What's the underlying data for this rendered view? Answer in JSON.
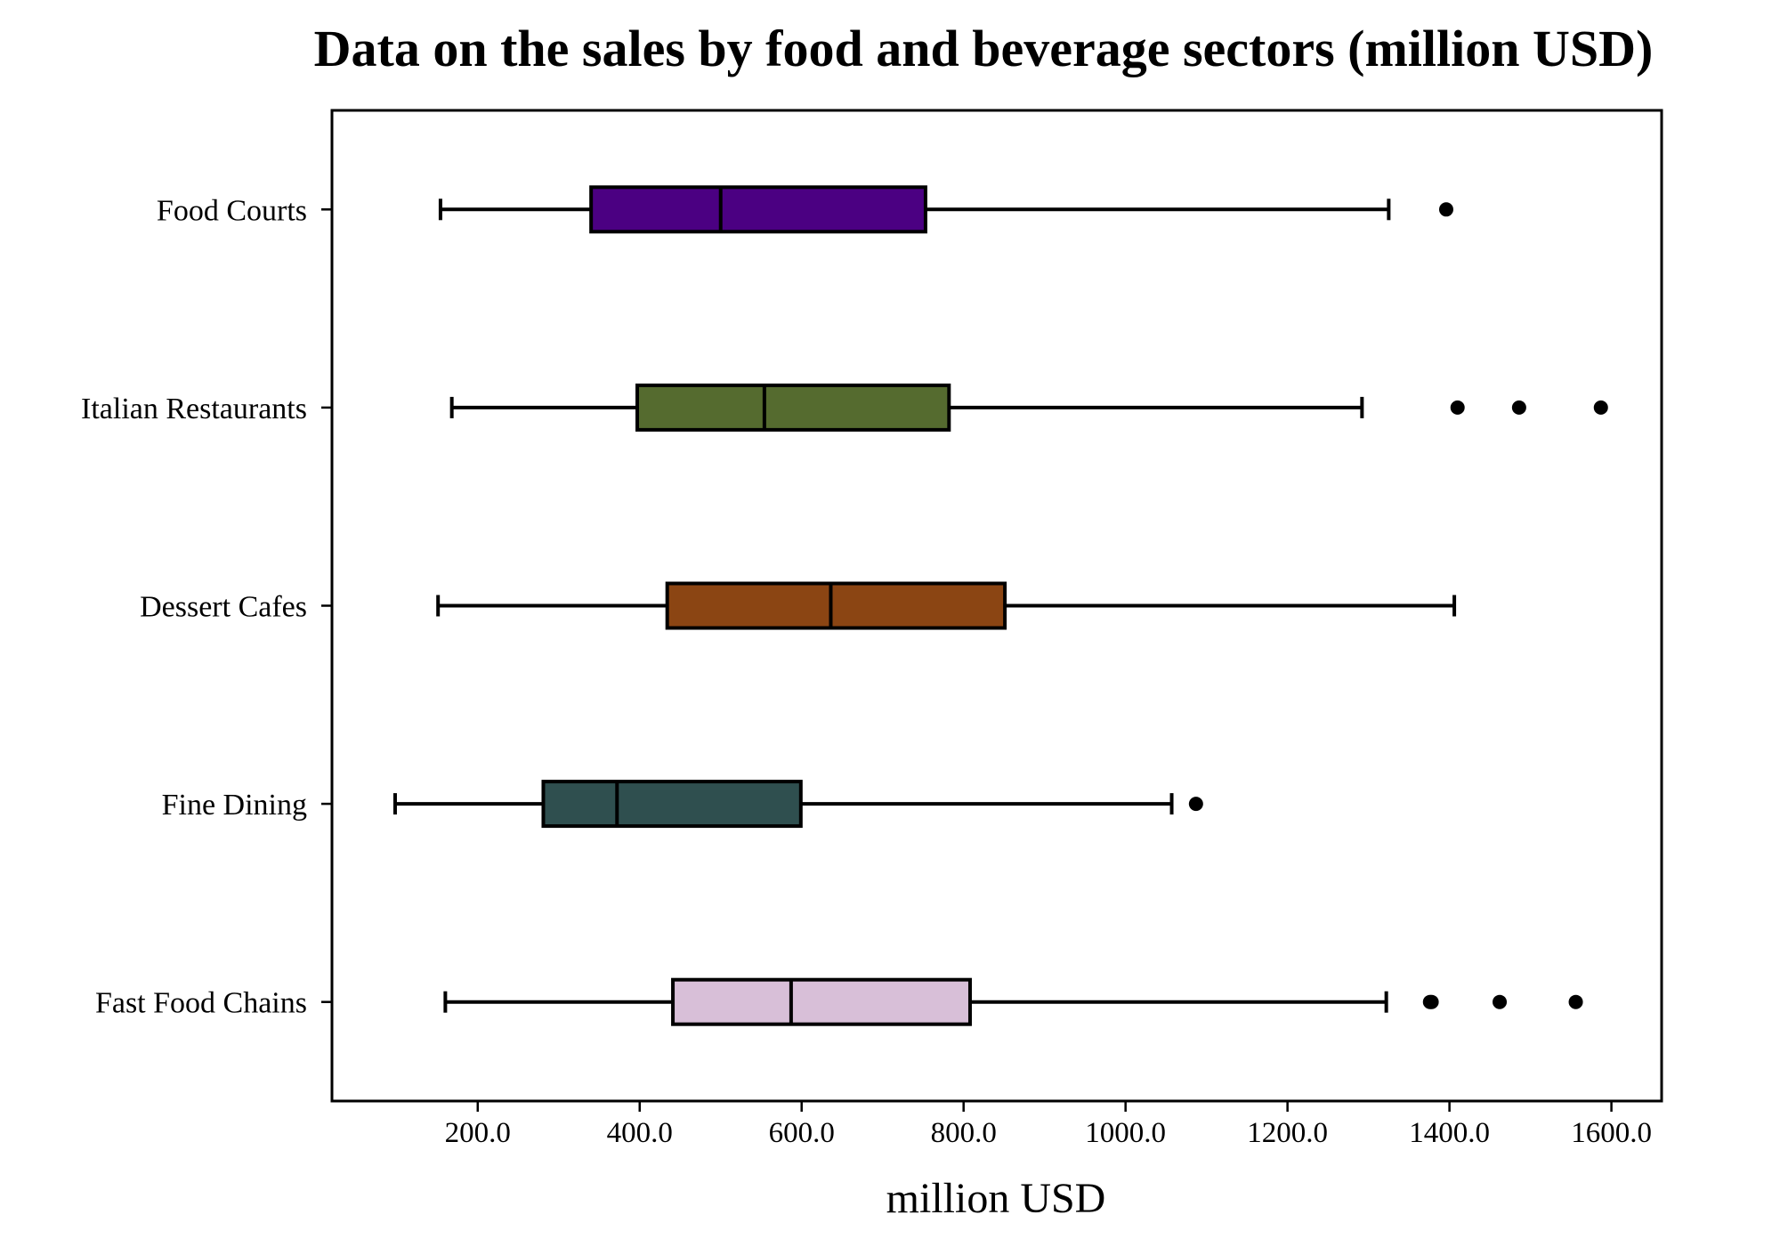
{
  "chart_data": {
    "type": "boxplot",
    "orientation": "horizontal",
    "title": "Data on the sales by food and beverage sectors (million USD)",
    "xlabel": "million USD",
    "ylabel": "",
    "xlim": [
      20,
      1662
    ],
    "xticks": [
      200,
      400,
      600,
      800,
      1000,
      1200,
      1400,
      1600
    ],
    "xtick_labels": [
      "200.0",
      "400.0",
      "600.0",
      "800.0",
      "1000.0",
      "1200.0",
      "1400.0",
      "1600.0"
    ],
    "grid": false,
    "legend": "none",
    "categories": [
      "Food Courts",
      "Italian Restaurants",
      "Dessert Cafes",
      "Fine Dining",
      "Fast Food Chains"
    ],
    "series": [
      {
        "category": "Food Courts",
        "whisker_low": 154,
        "q1": 340,
        "median": 500,
        "q3": 753,
        "whisker_high": 1325,
        "outliers": [
          1396
        ],
        "color": "#4b0082"
      },
      {
        "category": "Italian Restaurants",
        "whisker_low": 168,
        "q1": 397,
        "median": 554,
        "q3": 782,
        "whisker_high": 1292,
        "outliers": [
          1410,
          1486,
          1587
        ],
        "color": "#556b2f"
      },
      {
        "category": "Dessert Cafes",
        "whisker_low": 151,
        "q1": 434,
        "median": 636,
        "q3": 851,
        "whisker_high": 1406,
        "outliers": [],
        "color": "#8b4513"
      },
      {
        "category": "Fine Dining",
        "whisker_low": 98,
        "q1": 281,
        "median": 372,
        "q3": 599,
        "whisker_high": 1057,
        "outliers": [
          1087
        ],
        "color": "#2f4f4f"
      },
      {
        "category": "Fast Food Chains",
        "whisker_low": 160,
        "q1": 441,
        "median": 587,
        "q3": 808,
        "whisker_high": 1322,
        "outliers": [
          1376,
          1378,
          1462,
          1556
        ],
        "color": "#d8bfd8"
      }
    ]
  }
}
